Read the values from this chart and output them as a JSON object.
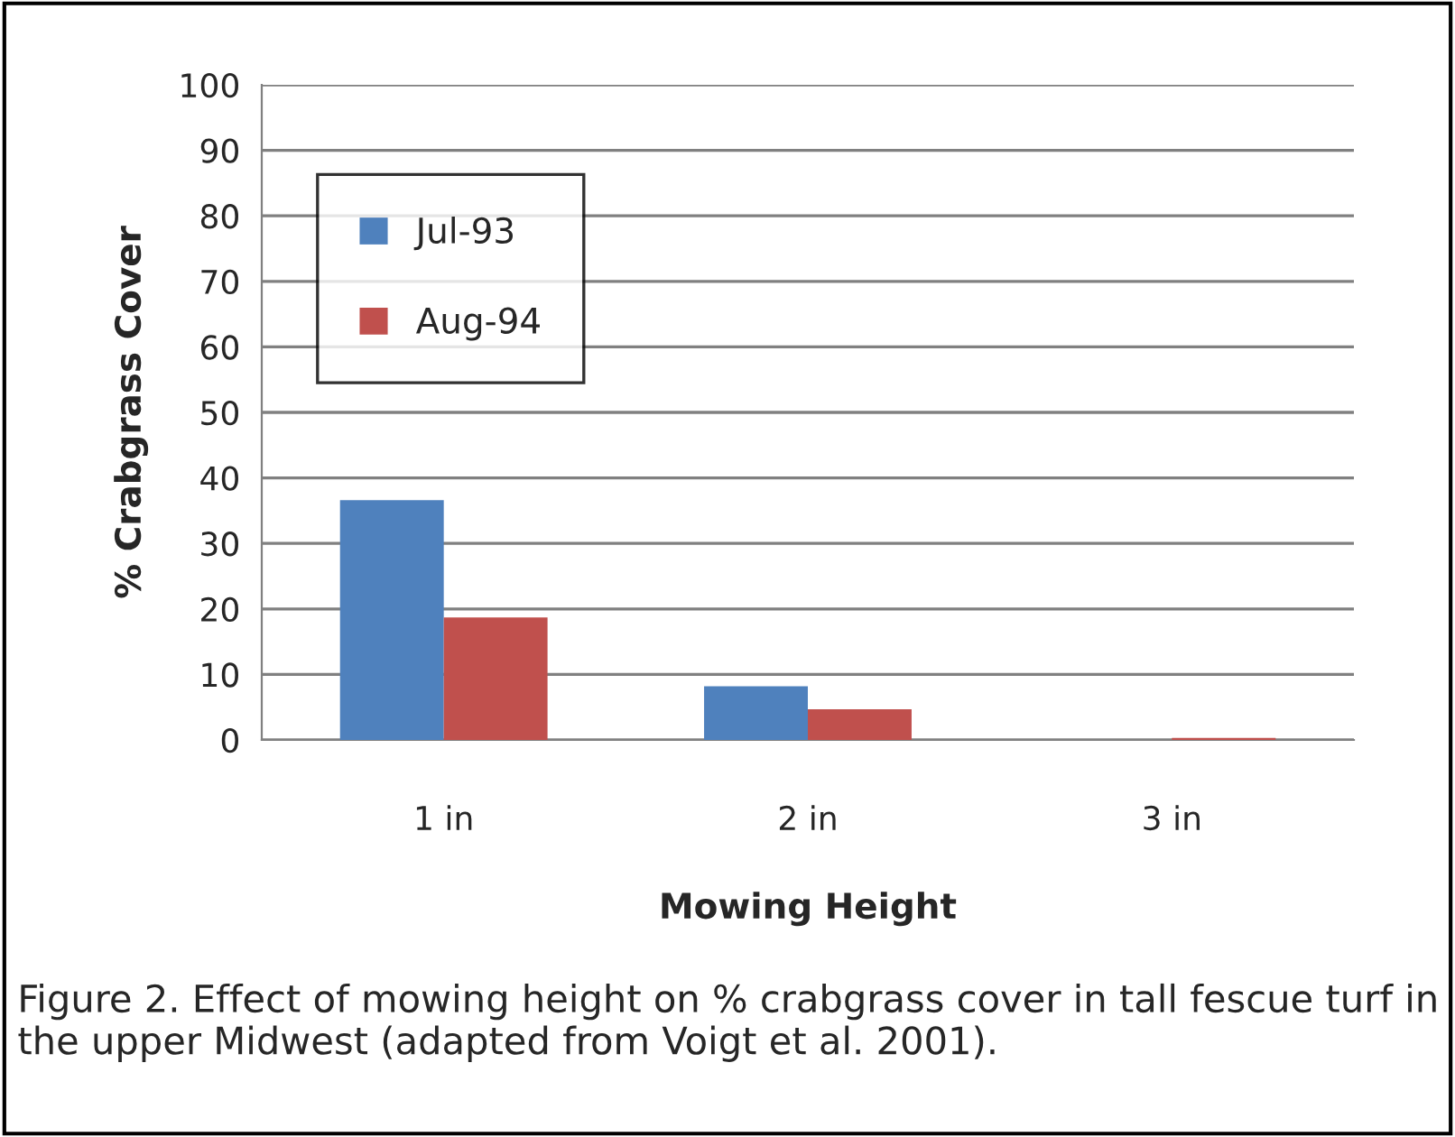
{
  "chart_data": {
    "type": "bar",
    "xlabel": "Mowing Height",
    "ylabel": "% Crabgrass Cover",
    "categories": [
      "1 in",
      "2 in",
      "3 in"
    ],
    "series": [
      {
        "name": "Jul-93",
        "color": "#4f81bd",
        "values": [
          36.6,
          8.2,
          null
        ]
      },
      {
        "name": "Aug-94",
        "color": "#c0504d",
        "values": [
          18.7,
          4.7,
          0.3
        ]
      }
    ],
    "ylim": [
      0,
      100
    ],
    "yticks": [
      0,
      10,
      20,
      30,
      40,
      50,
      60,
      70,
      80,
      90,
      100
    ],
    "grid": "y",
    "legend": "top left",
    "annotations": [
      "Figure 2. Effect of mowing height on % crabgrass cover in tall fescue turf in the upper Midwest (adapted from Voigt et al. 2001)."
    ]
  }
}
